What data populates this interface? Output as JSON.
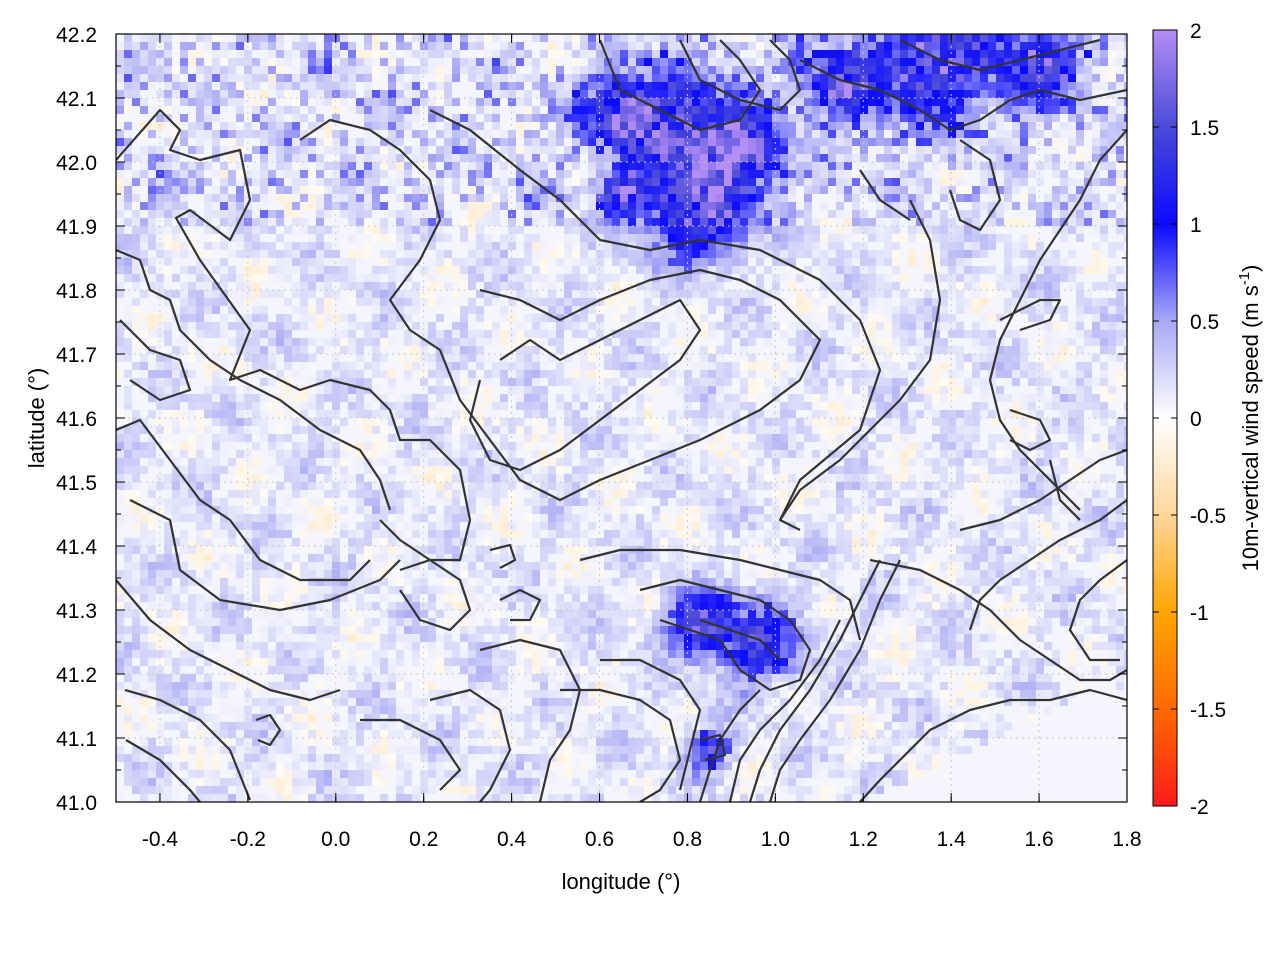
{
  "chart_data": {
    "type": "heatmap",
    "xlabel": "longitude (°)",
    "ylabel": "latitude (°)",
    "colorbar_label": "10m-vertical wind speed (m s",
    "colorbar_label_sup": "-1",
    "colorbar_label_end": ")",
    "xlim": [
      -0.5,
      1.8
    ],
    "ylim": [
      41.0,
      42.2
    ],
    "x_ticks": [
      {
        "value": -0.4,
        "label": "-0.4"
      },
      {
        "value": -0.2,
        "label": "-0.2"
      },
      {
        "value": 0.0,
        "label": "0.0"
      },
      {
        "value": 0.2,
        "label": "0.2"
      },
      {
        "value": 0.4,
        "label": "0.4"
      },
      {
        "value": 0.6,
        "label": "0.6"
      },
      {
        "value": 0.8,
        "label": "0.8"
      },
      {
        "value": 1.0,
        "label": "1.0"
      },
      {
        "value": 1.2,
        "label": "1.2"
      },
      {
        "value": 1.4,
        "label": "1.4"
      },
      {
        "value": 1.6,
        "label": "1.6"
      },
      {
        "value": 1.8,
        "label": "1.8"
      }
    ],
    "y_ticks": [
      {
        "value": 41.0,
        "label": "41.0"
      },
      {
        "value": 41.1,
        "label": "41.1"
      },
      {
        "value": 41.2,
        "label": "41.2"
      },
      {
        "value": 41.3,
        "label": "41.3"
      },
      {
        "value": 41.4,
        "label": "41.4"
      },
      {
        "value": 41.5,
        "label": "41.5"
      },
      {
        "value": 41.6,
        "label": "41.6"
      },
      {
        "value": 41.7,
        "label": "41.7"
      },
      {
        "value": 41.8,
        "label": "41.8"
      },
      {
        "value": 41.9,
        "label": "41.9"
      },
      {
        "value": 42.0,
        "label": "42.0"
      },
      {
        "value": 42.1,
        "label": "42.1"
      },
      {
        "value": 42.2,
        "label": "42.2"
      }
    ],
    "colorbar": {
      "range": [
        -2,
        2
      ],
      "ticks": [
        {
          "value": 2,
          "label": "2"
        },
        {
          "value": 1.5,
          "label": "1.5"
        },
        {
          "value": 1,
          "label": "1"
        },
        {
          "value": 0.5,
          "label": "0.5"
        },
        {
          "value": 0,
          "label": "0"
        },
        {
          "value": -0.5,
          "label": "-0.5"
        },
        {
          "value": -1,
          "label": "-1"
        },
        {
          "value": -1.5,
          "label": "-1.5"
        },
        {
          "value": -2,
          "label": "-2"
        }
      ],
      "colors": [
        {
          "value": -2,
          "color": "#ff1a1a"
        },
        {
          "value": -1.5,
          "color": "#ff6a00"
        },
        {
          "value": -1,
          "color": "#ffa500"
        },
        {
          "value": -0.5,
          "color": "#ffd699"
        },
        {
          "value": 0,
          "color": "#ffffff"
        },
        {
          "value": 0.5,
          "color": "#a8a8f5"
        },
        {
          "value": 1,
          "color": "#0a0aff"
        },
        {
          "value": 1.5,
          "color": "#4b4bd8"
        },
        {
          "value": 2,
          "color": "#b38ef5"
        }
      ]
    },
    "grid": true,
    "contours": true,
    "hotspots": [
      {
        "lon": 0.65,
        "lat": 42.08,
        "w": 0.08
      },
      {
        "lon": 0.78,
        "lat": 42.05,
        "w": 0.14
      },
      {
        "lon": 0.92,
        "lat": 42.02,
        "w": 0.1
      },
      {
        "lon": 0.82,
        "lat": 41.92,
        "w": 0.12
      },
      {
        "lon": 0.65,
        "lat": 41.95,
        "w": 0.05
      },
      {
        "lon": 1.35,
        "lat": 42.15,
        "w": 0.14
      },
      {
        "lon": 1.6,
        "lat": 42.15,
        "w": 0.1
      },
      {
        "lon": 1.15,
        "lat": 42.12,
        "w": 0.08
      },
      {
        "lon": 0.95,
        "lat": 41.25,
        "w": 0.1
      },
      {
        "lon": 0.82,
        "lat": 41.28,
        "w": 0.07
      },
      {
        "lon": 0.85,
        "lat": 41.08,
        "w": 0.05
      }
    ]
  }
}
